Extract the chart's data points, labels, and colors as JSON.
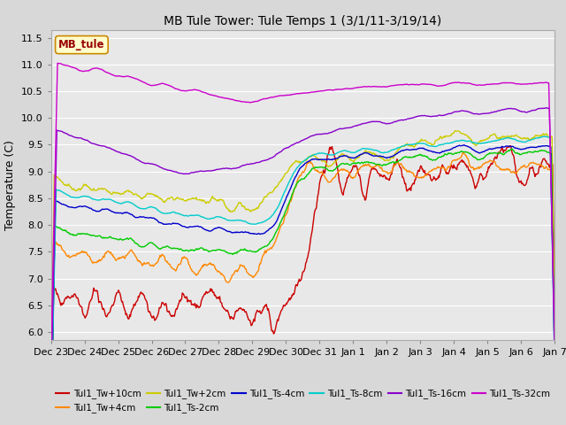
{
  "title": "MB Tule Tower: Tule Temps 1 (3/1/11-3/19/14)",
  "ylabel": "Temperature (C)",
  "legend_box_label": "MB_tule",
  "ylim": [
    5.85,
    11.65
  ],
  "yticks": [
    6.0,
    6.5,
    7.0,
    7.5,
    8.0,
    8.5,
    9.0,
    9.5,
    10.0,
    10.5,
    11.0,
    11.5
  ],
  "xtick_labels": [
    "Dec 23",
    "Dec 24",
    "Dec 25",
    "Dec 26",
    "Dec 27",
    "Dec 28",
    "Dec 29",
    "Dec 30",
    "Dec 31",
    "Jan 1",
    "Jan 2",
    "Jan 3",
    "Jan 4",
    "Jan 5",
    "Jan 6",
    "Jan 7"
  ],
  "series": [
    {
      "label": "Tul1_Tw+10cm",
      "color": "#cc0000"
    },
    {
      "label": "Tul1_Tw+4cm",
      "color": "#ff8800"
    },
    {
      "label": "Tul1_Tw+2cm",
      "color": "#cccc00"
    },
    {
      "label": "Tul1_Ts-2cm",
      "color": "#00cc00"
    },
    {
      "label": "Tul1_Ts-4cm",
      "color": "#0000cc"
    },
    {
      "label": "Tul1_Ts-8cm",
      "color": "#00cccc"
    },
    {
      "label": "Tul1_Ts-16cm",
      "color": "#8800cc"
    },
    {
      "label": "Tul1_Ts-32cm",
      "color": "#cc00cc"
    }
  ],
  "fig_bg_color": "#d8d8d8",
  "plot_bg_color": "#e8e8e8",
  "grid_color": "#ffffff"
}
